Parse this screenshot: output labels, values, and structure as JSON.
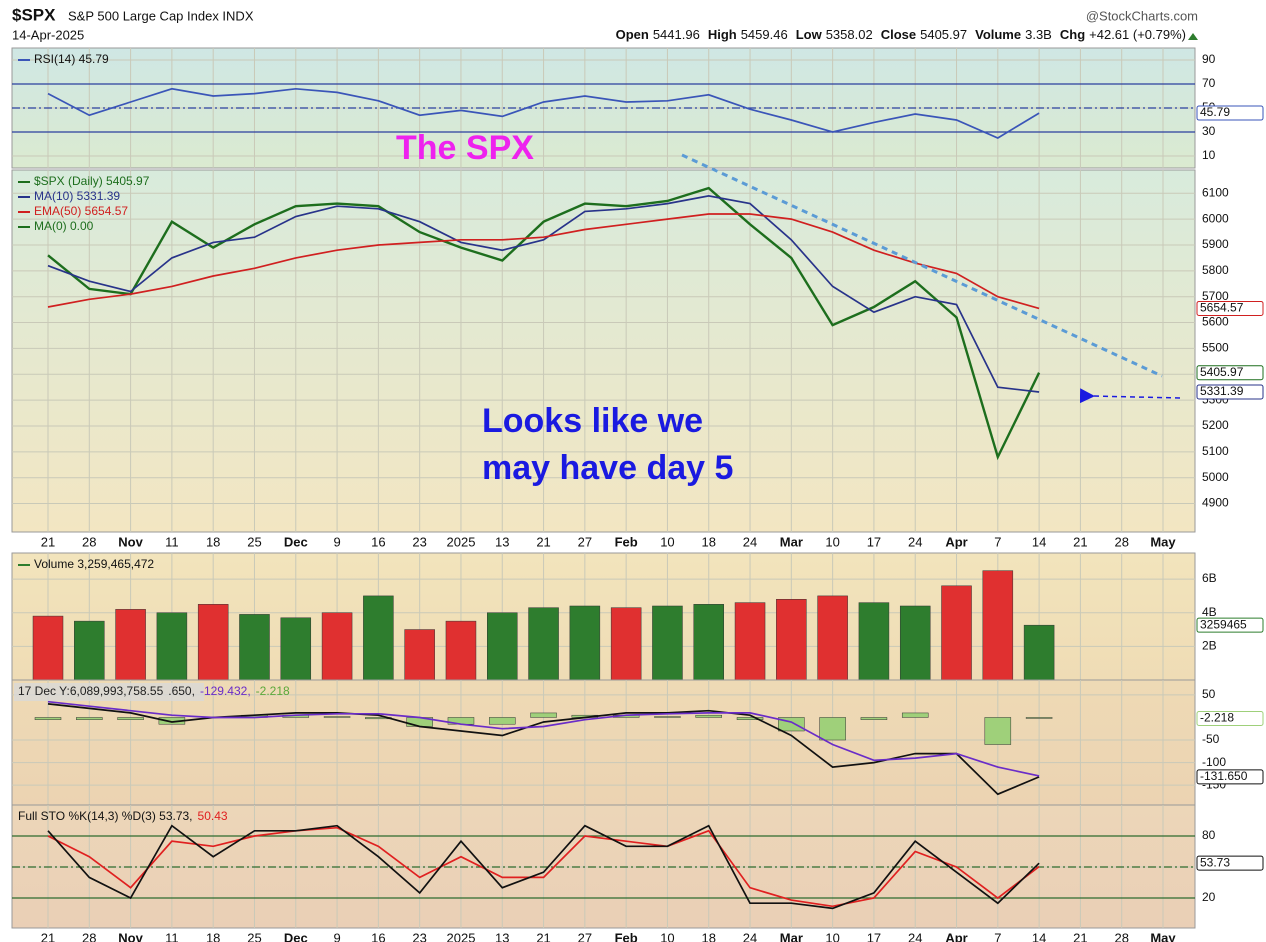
{
  "header": {
    "symbol": "$SPX",
    "name": "S&P 500 Large Cap Index INDX",
    "source": "@StockCharts.com",
    "date": "14-Apr-2025",
    "quote": [
      {
        "label": "Open",
        "value": "5441.96"
      },
      {
        "label": "High",
        "value": "5459.46"
      },
      {
        "label": "Low",
        "value": "5358.02"
      },
      {
        "label": "Close",
        "value": "5405.97"
      },
      {
        "label": "Volume",
        "value": "3.3B"
      },
      {
        "label": "Chg",
        "value": "+42.61 (+0.79%)"
      }
    ]
  },
  "chart_data": [
    {
      "type": "line",
      "ylim": [
        0,
        100
      ],
      "yticks": [
        10,
        30,
        50,
        70,
        90
      ],
      "reference_lines": [
        {
          "value": 70,
          "dashed": false
        },
        {
          "value": 50,
          "dashed": true
        },
        {
          "value": 30,
          "dashed": false
        }
      ],
      "series": [
        {
          "name": "RSI(14) 45.79",
          "color": "#3a55b8",
          "tag": true,
          "values": [
            62,
            44,
            55,
            66,
            60,
            62,
            66,
            63,
            56,
            44,
            48,
            43,
            55,
            60,
            55,
            56,
            61,
            49,
            40,
            30,
            38,
            45,
            40,
            25,
            45.79,
            null,
            null,
            null
          ]
        }
      ],
      "annotations": [
        {
          "text": "The SPX",
          "color": "#ee22ee"
        }
      ]
    },
    {
      "type": "line",
      "ylim": [
        4790,
        6190
      ],
      "yticks": [
        4900,
        5000,
        5100,
        5200,
        5300,
        5400,
        5500,
        5600,
        5700,
        5800,
        5900,
        6000,
        6100
      ],
      "categories": [
        "21",
        "28",
        "Nov",
        "11",
        "18",
        "25",
        "Dec",
        "9",
        "16",
        "23",
        "2025",
        "13",
        "21",
        "27",
        "Feb",
        "10",
        "18",
        "24",
        "Mar",
        "10",
        "17",
        "24",
        "Apr",
        "7",
        "14",
        "21",
        "28",
        "May"
      ],
      "series": [
        {
          "name": "$SPX (Daily) 5405.97",
          "color": "#1d6e1d",
          "tag": true,
          "values": [
            5860,
            5730,
            5710,
            5990,
            5890,
            5980,
            6050,
            6060,
            6050,
            5950,
            5890,
            5840,
            5990,
            6060,
            6050,
            6070,
            6120,
            5980,
            5850,
            5590,
            5660,
            5760,
            5620,
            5080,
            5405.97,
            null,
            null,
            null
          ]
        },
        {
          "name": "MA(10) 5331.39",
          "color": "#28338a",
          "tag": true,
          "values": [
            5820,
            5760,
            5720,
            5850,
            5910,
            5930,
            6010,
            6050,
            6040,
            5990,
            5910,
            5880,
            5920,
            6030,
            6040,
            6060,
            6090,
            6060,
            5920,
            5740,
            5640,
            5700,
            5670,
            5350,
            5331.39,
            null,
            null,
            null
          ]
        },
        {
          "name": "EMA(50) 5654.57",
          "color": "#d02020",
          "tag": true,
          "values": [
            5660,
            5690,
            5710,
            5740,
            5780,
            5810,
            5850,
            5880,
            5900,
            5910,
            5920,
            5920,
            5930,
            5960,
            5980,
            6000,
            6020,
            6020,
            6000,
            5950,
            5880,
            5830,
            5790,
            5700,
            5654.57,
            null,
            null,
            null
          ]
        }
      ],
      "legend_extra": {
        "text": "MA(0) 0.00",
        "color": "#1d6e1d"
      },
      "annotations": [
        {
          "text": [
            "Looks like we",
            "may have day 5"
          ],
          "color": "#1a1ae0"
        }
      ]
    },
    {
      "type": "bar",
      "ylim": [
        0,
        7550000000
      ],
      "yticks": [
        {
          "value": 2000000000,
          "label": "2B"
        },
        {
          "value": 4000000000,
          "label": "4B"
        },
        {
          "value": 6000000000,
          "label": "6B"
        }
      ],
      "series": [
        {
          "name": "Volume 3,259,465,472",
          "color": "#2e7d2e",
          "tag": true,
          "tag_label": "3259465",
          "values": [
            3800000000,
            3500000000,
            4200000000,
            4000000000,
            4500000000,
            3900000000,
            3700000000,
            4000000000,
            5000000000,
            3000000000,
            3500000000,
            4000000000,
            4300000000,
            4400000000,
            4300000000,
            4400000000,
            4500000000,
            4600000000,
            4800000000,
            5000000000,
            4600000000,
            4400000000,
            5600000000,
            6500000000,
            3259465472,
            null,
            null,
            null
          ],
          "colors": [
            "#e03030",
            "#2e7d2e",
            "#e03030",
            "#2e7d2e",
            "#e03030",
            "#2e7d2e",
            "#2e7d2e",
            "#e03030",
            "#2e7d2e",
            "#e03030",
            "#e03030",
            "#2e7d2e",
            "#2e7d2e",
            "#2e7d2e",
            "#e03030",
            "#2e7d2e",
            "#2e7d2e",
            "#e03030",
            "#e03030",
            "#e03030",
            "#2e7d2e",
            "#2e7d2e",
            "#e03030",
            "#e03030",
            "#2e7d2e",
            null,
            null,
            null
          ]
        }
      ]
    },
    {
      "type": "line",
      "ylim": [
        -194,
        83
      ],
      "yticks": [
        -150,
        -100,
        -50,
        50
      ],
      "legend": [
        {
          "text": "17 Dec Y:6,089,993,758.55",
          "color": "#222222"
        },
        {
          "text": ".650,",
          "color": "#222222"
        },
        {
          "text": "-129.432,",
          "color": "#6a2cc8"
        },
        {
          "text": "-2.218",
          "color": "#5aa83a"
        }
      ],
      "series": [
        {
          "kind": "bar",
          "color": "#9fd07a",
          "tag": true,
          "values": [
            -5,
            -5,
            -5,
            -15,
            0,
            5,
            5,
            2,
            -3,
            -20,
            -15,
            -15,
            10,
            5,
            5,
            2,
            5,
            -5,
            -30,
            -50,
            -5,
            10,
            0,
            -60,
            -2.218,
            null,
            null,
            null
          ]
        },
        {
          "color": "#111111",
          "tag": true,
          "tag_label": "-131.650",
          "values": [
            30,
            20,
            10,
            -10,
            0,
            5,
            10,
            10,
            5,
            -20,
            -30,
            -40,
            -10,
            0,
            10,
            10,
            15,
            5,
            -40,
            -110,
            -100,
            -80,
            -80,
            -170,
            -131.65,
            null,
            null,
            null
          ]
        },
        {
          "color": "#6a2cc8",
          "values": [
            35,
            25,
            15,
            5,
            0,
            0,
            5,
            8,
            8,
            0,
            -15,
            -25,
            -20,
            -5,
            5,
            8,
            10,
            10,
            -10,
            -60,
            -95,
            -90,
            -80,
            -110,
            -129.43,
            null,
            null,
            null
          ]
        }
      ]
    },
    {
      "type": "line",
      "ylim": [
        -9,
        110
      ],
      "yticks": [
        20,
        50,
        80
      ],
      "reference_lines": [
        {
          "value": 80,
          "dashed": false
        },
        {
          "value": 50,
          "dashed": true
        },
        {
          "value": 20,
          "dashed": false
        }
      ],
      "categories": [
        "21",
        "28",
        "Nov",
        "11",
        "18",
        "25",
        "Dec",
        "9",
        "16",
        "23",
        "2025",
        "13",
        "21",
        "27",
        "Feb",
        "10",
        "18",
        "24",
        "Mar",
        "10",
        "17",
        "24",
        "Apr",
        "7",
        "14",
        "21",
        "28",
        "May"
      ],
      "legend": [
        {
          "text": "Full STO %K(14,3) %D(3) 53.73,",
          "color": "#111111"
        },
        {
          "text": "50.43",
          "color": "#e02020"
        }
      ],
      "series": [
        {
          "color": "#e02020",
          "values": [
            80,
            60,
            30,
            75,
            70,
            80,
            85,
            88,
            70,
            40,
            60,
            40,
            40,
            80,
            75,
            70,
            85,
            30,
            18,
            12,
            20,
            65,
            50,
            20,
            50.43,
            null,
            null,
            null
          ]
        },
        {
          "color": "#111111",
          "tag": true,
          "values": [
            85,
            40,
            20,
            90,
            60,
            85,
            85,
            90,
            60,
            25,
            75,
            30,
            45,
            90,
            70,
            70,
            90,
            15,
            15,
            10,
            25,
            75,
            45,
            15,
            53.73,
            null,
            null,
            null
          ]
        }
      ]
    }
  ]
}
